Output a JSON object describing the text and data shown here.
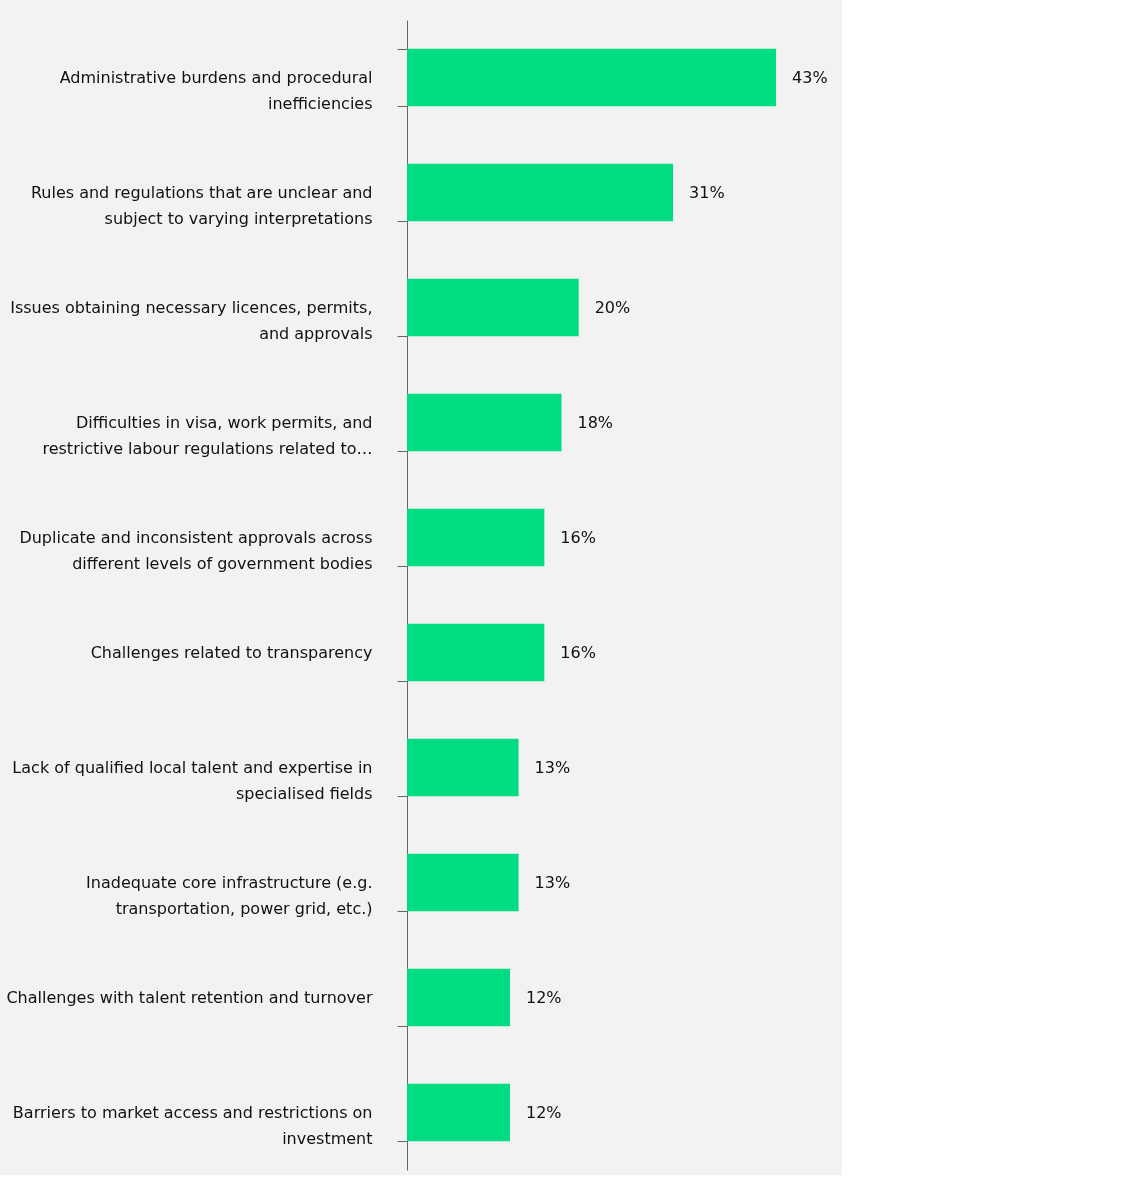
{
  "chart_data": {
    "type": "bar",
    "orientation": "horizontal",
    "categories": [
      "Administrative burdens and procedural inefficiencies",
      "Rules and regulations that are unclear and subject to varying interpretations",
      "Issues obtaining necessary licences, permits, and approvals",
      "Difficulties in visa, work permits, and restrictive labour regulations related to…",
      "Duplicate and inconsistent approvals across different levels of government bodies",
      "Challenges related to transparency",
      "Lack of qualified local talent and expertise in specialised fields",
      "Inadequate core infrastructure (e.g. transportation, power grid, etc.)",
      "Challenges with talent retention and turnover",
      "Barriers to market access and restrictions on investment"
    ],
    "values": [
      43,
      31,
      20,
      18,
      16,
      16,
      13,
      13,
      12,
      12
    ],
    "value_labels": [
      "43%",
      "31%",
      "20%",
      "18%",
      "16%",
      "16%",
      "13%",
      "13%",
      "12%",
      "12%"
    ],
    "color": "#00dc82",
    "grid": false,
    "tick_labels": "y"
  }
}
